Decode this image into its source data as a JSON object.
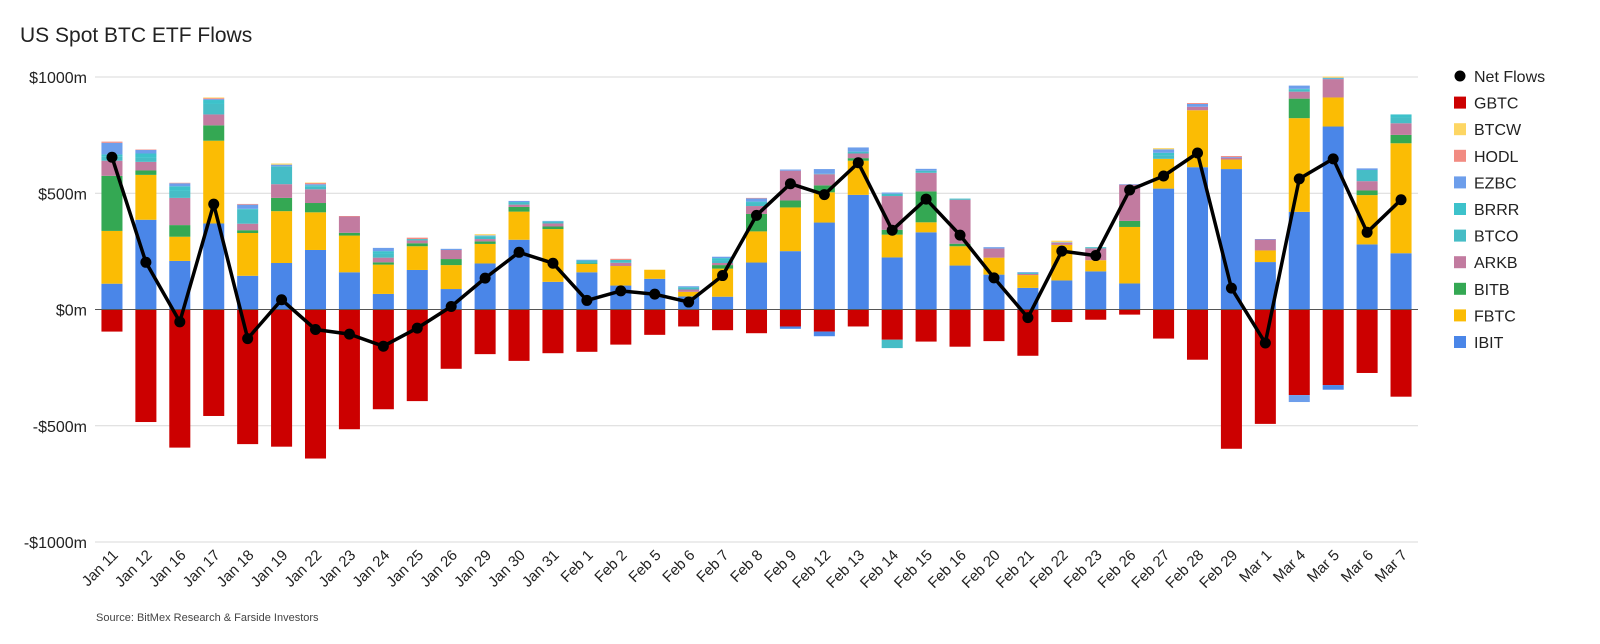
{
  "chart_data": {
    "type": "bar",
    "stacked": true,
    "title": "US Spot BTC ETF Flows",
    "source": "Source: BitMex Research & Farside Investors",
    "ylim": [
      -1000,
      1000
    ],
    "y_ticks": [
      1000,
      500,
      0,
      -500,
      -1000
    ],
    "y_tick_labels": [
      "$1000m",
      "$500m",
      "$0m",
      "-$500m",
      "-$1000m"
    ],
    "grid": true,
    "legend_position": "right",
    "categories": [
      "Jan 11",
      "Jan 12",
      "Jan 16",
      "Jan 17",
      "Jan 18",
      "Jan 19",
      "Jan 22",
      "Jan 23",
      "Jan 24",
      "Jan 25",
      "Jan 26",
      "Jan 29",
      "Jan 30",
      "Jan 31",
      "Feb 1",
      "Feb 2",
      "Feb 5",
      "Feb 6",
      "Feb 7",
      "Feb 8",
      "Feb 9",
      "Feb 12",
      "Feb 13",
      "Feb 14",
      "Feb 15",
      "Feb 16",
      "Feb 20",
      "Feb 21",
      "Feb 22",
      "Feb 23",
      "Feb 26",
      "Feb 27",
      "Feb 28",
      "Feb 29",
      "Mar 1",
      "Mar 4",
      "Mar 5",
      "Mar 6",
      "Mar 7"
    ],
    "series": [
      {
        "name": "IBIT",
        "color": "#4a86e8",
        "values": [
          111,
          386,
          209,
          370,
          145,
          200,
          256,
          160,
          67,
          170,
          88,
          198,
          300,
          119,
          160,
          103,
          132,
          56,
          55,
          202,
          251,
          374,
          493,
          224,
          332,
          189,
          150,
          93,
          125,
          164,
          112,
          520,
          612,
          604,
          204,
          420,
          787,
          280,
          242
        ]
      },
      {
        "name": "FBTC",
        "color": "#fbbc04",
        "values": [
          227,
          193,
          104,
          356,
          184,
          223,
          162,
          158,
          126,
          102,
          103,
          84,
          121,
          227,
          36,
          84,
          39,
          20,
          121,
          134,
          188,
          130,
          147,
          98,
          43,
          83,
          73,
          55,
          153,
          48,
          243,
          128,
          245,
          41,
          50,
          403,
          125,
          212,
          473
        ]
      },
      {
        "name": "BITB",
        "color": "#34a853",
        "values": [
          237,
          19,
          50,
          66,
          12,
          57,
          40,
          12,
          10,
          13,
          26,
          11,
          20,
          11,
          2,
          0,
          0,
          0,
          15,
          75,
          30,
          30,
          11,
          21,
          133,
          11,
          0,
          0,
          0,
          0,
          26,
          0,
          0,
          0,
          0,
          84,
          0,
          20,
          36
        ]
      },
      {
        "name": "ARKB",
        "color": "#c27ba0",
        "values": [
          65,
          37,
          117,
          47,
          28,
          59,
          59,
          70,
          20,
          12,
          39,
          10,
          10,
          13,
          0,
          14,
          0,
          10,
          9,
          34,
          128,
          48,
          20,
          145,
          80,
          189,
          39,
          5,
          8,
          51,
          156,
          0,
          15,
          8,
          47,
          30,
          79,
          40,
          50
        ]
      },
      {
        "name": "BTCO",
        "color": "#46bdc6",
        "values": [
          17,
          17,
          30,
          45,
          60,
          77,
          11,
          0,
          16,
          6,
          0,
          10,
          10,
          7,
          13,
          12,
          0,
          10,
          11,
          15,
          0,
          2,
          8,
          10,
          9,
          5,
          0,
          5,
          0,
          5,
          0,
          16,
          0,
          0,
          0,
          8,
          0,
          48,
          25
        ]
      },
      {
        "name": "BRRR",
        "color": "#3dc2cb",
        "values": [
          10,
          19,
          20,
          17,
          4,
          0,
          6,
          0,
          12,
          0,
          0,
          4,
          1,
          2,
          0,
          0,
          0,
          0,
          10,
          4,
          0,
          0,
          0,
          0,
          0,
          0,
          0,
          0,
          0,
          0,
          0,
          10,
          0,
          0,
          0,
          4,
          3,
          0,
          13
        ]
      },
      {
        "name": "EZBC",
        "color": "#6d9eeb",
        "values": [
          50,
          15,
          13,
          4,
          18,
          7,
          5,
          0,
          14,
          0,
          5,
          2,
          5,
          2,
          3,
          0,
          0,
          4,
          6,
          14,
          5,
          20,
          18,
          5,
          8,
          0,
          6,
          3,
          3,
          0,
          2,
          15,
          12,
          3,
          2,
          14,
          3,
          7,
          0
        ]
      },
      {
        "name": "HODL",
        "color": "#f28b82",
        "values": [
          5,
          2,
          2,
          4,
          3,
          0,
          5,
          2,
          0,
          6,
          0,
          0,
          0,
          0,
          0,
          5,
          0,
          0,
          0,
          2,
          0,
          0,
          0,
          0,
          0,
          0,
          0,
          0,
          0,
          0,
          0,
          0,
          4,
          4,
          0,
          0,
          0,
          0,
          0
        ]
      },
      {
        "name": "BTCW",
        "color": "#fdd663",
        "values": [
          0,
          0,
          0,
          3,
          0,
          5,
          2,
          0,
          0,
          0,
          0,
          5,
          0,
          0,
          0,
          0,
          0,
          0,
          0,
          0,
          0,
          0,
          0,
          0,
          0,
          0,
          0,
          0,
          7,
          0,
          0,
          5,
          0,
          0,
          0,
          0,
          5,
          0,
          0
        ]
      },
      {
        "name": "GBTC",
        "color": "#cc0000",
        "values": [
          -95,
          -484,
          -594,
          -458,
          -579,
          -590,
          -641,
          -515,
          -429,
          -394,
          -255,
          -192,
          -221,
          -188,
          -182,
          -151,
          -109,
          -73,
          -89,
          -102,
          -73,
          -95,
          -73,
          -130,
          -138,
          -160,
          -136,
          -199,
          -54,
          -44,
          -22,
          -125,
          -216,
          -599,
          -492,
          -368,
          -325,
          -273,
          -375
        ]
      }
    ],
    "negative_extras": [
      {
        "name": "IBIT",
        "index": 20,
        "value": -10
      },
      {
        "name": "IBIT",
        "index": 21,
        "value": -20
      },
      {
        "name": "BTCO",
        "index": 23,
        "value": -36
      },
      {
        "name": "EZBC",
        "index": 35,
        "value": -30
      },
      {
        "name": "IBIT",
        "index": 36,
        "value": -20
      }
    ],
    "net_flows": {
      "name": "Net Flows",
      "color": "#000000",
      "values": [
        655,
        203,
        -53,
        453,
        -125,
        42,
        -86,
        -106,
        -158,
        -80,
        13,
        135,
        246,
        199,
        39,
        80,
        66,
        32,
        146,
        405,
        541,
        494,
        631,
        341,
        475,
        320,
        136,
        -35,
        251,
        232,
        514,
        574,
        673,
        92,
        -144,
        562,
        648,
        332,
        472
      ]
    }
  },
  "legend": [
    "Net Flows",
    "GBTC",
    "BTCW",
    "HODL",
    "EZBC",
    "BRRR",
    "BTCO",
    "ARKB",
    "BITB",
    "FBTC",
    "IBIT"
  ]
}
